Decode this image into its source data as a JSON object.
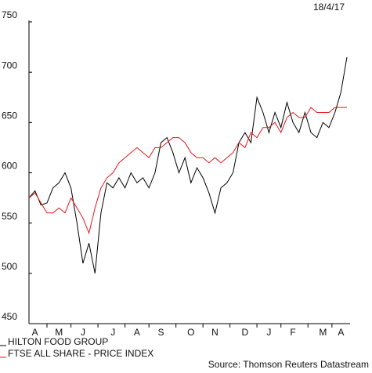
{
  "chart_data": {
    "type": "line",
    "date": "18/4/17",
    "source": "Source: Thomson Reuters Datastream",
    "categories": [
      null,
      "A",
      null,
      null,
      null,
      "M",
      null,
      null,
      null,
      "J",
      null,
      null,
      null,
      null,
      "J",
      null,
      null,
      null,
      "A",
      null,
      null,
      null,
      "S",
      null,
      null,
      null,
      null,
      "O",
      null,
      null,
      null,
      "N",
      null,
      null,
      null,
      null,
      "D",
      null,
      null,
      null,
      "J",
      null,
      null,
      null,
      "F",
      null,
      null,
      null,
      null,
      "M",
      null,
      null,
      "A",
      null
    ],
    "series": [
      {
        "name": "HILTON FOOD GROUP",
        "color": "#000000",
        "values": [
          575,
          582,
          568,
          570,
          585,
          590,
          600,
          585,
          550,
          510,
          530,
          500,
          560,
          590,
          585,
          595,
          585,
          600,
          590,
          595,
          585,
          600,
          630,
          635,
          620,
          600,
          615,
          590,
          605,
          595,
          580,
          560,
          585,
          590,
          600,
          630,
          640,
          630,
          675,
          660,
          640,
          660,
          645,
          670,
          650,
          640,
          660,
          640,
          635,
          650,
          645,
          660,
          680,
          715
        ]
      },
      {
        "name": "FTSE ALL SHARE - PRICE INDEX",
        "color": "#e8141b",
        "values": [
          575,
          580,
          570,
          560,
          560,
          565,
          560,
          575,
          565,
          555,
          540,
          565,
          585,
          595,
          600,
          610,
          615,
          620,
          625,
          620,
          615,
          625,
          625,
          630,
          635,
          635,
          630,
          620,
          615,
          615,
          610,
          615,
          610,
          615,
          620,
          630,
          625,
          640,
          635,
          645,
          645,
          650,
          640,
          655,
          660,
          655,
          655,
          665,
          660,
          660,
          660,
          665,
          665,
          665
        ]
      }
    ],
    "ylim": [
      450,
      750
    ],
    "yticks": [
      450,
      500,
      550,
      600,
      650,
      700,
      750
    ]
  }
}
